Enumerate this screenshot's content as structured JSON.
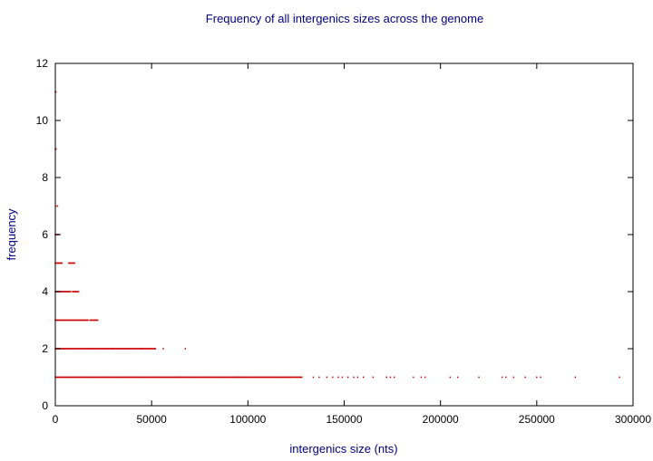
{
  "chart_data": {
    "type": "scatter",
    "title": "Frequency of all intergenics sizes across the genome",
    "xlabel": "intergenics size (nts)",
    "ylabel": "frequency",
    "xlim": [
      0,
      300000
    ],
    "ylim": [
      0,
      12
    ],
    "xticks": [
      0,
      50000,
      100000,
      150000,
      200000,
      250000,
      300000
    ],
    "xtick_labels": [
      "0",
      "50000",
      "100000",
      "150000",
      "200000",
      "250000",
      "300000"
    ],
    "yticks": [
      0,
      2,
      4,
      6,
      8,
      10,
      12
    ],
    "ytick_labels": [
      "0",
      "2",
      "4",
      "6",
      "8",
      "10",
      "12"
    ],
    "grid": false,
    "legend": "none",
    "colors": {
      "points": "#cc0000",
      "text": "#000080",
      "axes": "#000000"
    },
    "series": [
      {
        "points_by_frequency": [
          {
            "y": 11,
            "x_ranges": [
              [
                0,
                300
              ]
            ]
          },
          {
            "y": 9,
            "x_ranges": [
              [
                0,
                400
              ]
            ]
          },
          {
            "y": 7,
            "x_ranges": [
              [
                300,
                1200
              ]
            ]
          },
          {
            "y": 6,
            "x_ranges": [
              [
                0,
                1800
              ]
            ]
          },
          {
            "y": 5,
            "x_ranges": [
              [
                0,
                3500
              ],
              [
                7000,
                10000
              ]
            ]
          },
          {
            "y": 4,
            "x_ranges": [
              [
                0,
                8000
              ],
              [
                9000,
                12000
              ]
            ]
          },
          {
            "y": 3,
            "x_ranges": [
              [
                0,
                17000
              ],
              [
                18000,
                22000
              ]
            ]
          },
          {
            "y": 2,
            "x_ranges": [
              [
                0,
                30000
              ],
              [
                30000,
                45000
              ],
              [
                45000,
                52000
              ]
            ],
            "x": [
              56000,
              67500
            ]
          },
          {
            "y": 1,
            "x_ranges": [
              [
                0,
                65000
              ],
              [
                65000,
                95000
              ],
              [
                95000,
                128000
              ]
            ],
            "x": [
              134000,
              137000,
              141000,
              144000,
              147000,
              149000,
              152000,
              155000,
              157000,
              160000,
              165000,
              172000,
              174000,
              176000,
              186000,
              190000,
              192000,
              205000,
              209000,
              220000,
              232000,
              234000,
              238000,
              244000,
              250000,
              252000,
              270000,
              293000
            ]
          }
        ]
      }
    ]
  }
}
